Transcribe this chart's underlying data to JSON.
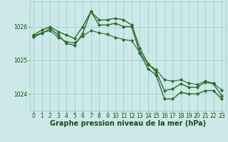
{
  "line1": {
    "x": [
      0,
      1,
      2,
      3,
      4,
      5,
      6,
      7,
      8,
      9,
      10,
      11,
      12,
      13,
      14,
      15,
      16,
      17,
      18,
      19,
      20,
      21,
      22,
      23
    ],
    "y": [
      1025.75,
      1025.9,
      1026.0,
      1025.85,
      1025.75,
      1025.65,
      1026.0,
      1026.45,
      1026.2,
      1026.2,
      1026.25,
      1026.2,
      1026.05,
      1025.35,
      1024.9,
      1024.65,
      1024.1,
      1024.15,
      1024.3,
      1024.2,
      1024.2,
      1024.35,
      1024.3,
      1023.95
    ],
    "color": "#2d6a2d",
    "marker": "D",
    "markersize": 2.2,
    "linewidth": 1.0
  },
  "line2": {
    "x": [
      0,
      1,
      2,
      3,
      4,
      5,
      6,
      7,
      8,
      9,
      10,
      11,
      12,
      13,
      14,
      15,
      16,
      17,
      18,
      19,
      20,
      21,
      22,
      23
    ],
    "y": [
      1025.7,
      1025.8,
      1025.95,
      1025.75,
      1025.5,
      1025.45,
      1025.8,
      1026.45,
      1026.05,
      1026.05,
      1026.1,
      1026.0,
      1026.0,
      1025.2,
      1024.75,
      1024.55,
      1023.85,
      1023.85,
      1024.05,
      1024.0,
      1024.0,
      1024.1,
      1024.1,
      1023.85
    ],
    "color": "#2d6a2d",
    "marker": "D",
    "markersize": 2.2,
    "linewidth": 1.0
  },
  "line3": {
    "x": [
      0,
      1,
      2,
      3,
      4,
      5,
      6,
      7,
      8,
      9,
      10,
      11,
      12,
      13,
      14,
      15,
      16,
      17,
      18,
      19,
      20,
      21,
      22,
      23
    ],
    "y": [
      1025.72,
      1025.82,
      1025.88,
      1025.68,
      1025.55,
      1025.52,
      1025.72,
      1025.88,
      1025.82,
      1025.77,
      1025.68,
      1025.62,
      1025.58,
      1025.22,
      1024.88,
      1024.72,
      1024.42,
      1024.38,
      1024.42,
      1024.32,
      1024.28,
      1024.38,
      1024.32,
      1024.12
    ],
    "color": "#2d6a2d",
    "marker": "D",
    "markersize": 2.2,
    "linewidth": 0.8
  },
  "background_color": "#cce8e8",
  "grid_color": "#99cccc",
  "axis_label": "Graphe pression niveau de la mer (hPa)",
  "axis_label_fontsize": 7.0,
  "axis_label_color": "#1a4a1a",
  "tick_color": "#1a4a1a",
  "tick_fontsize": 5.5,
  "ylim": [
    1023.5,
    1026.75
  ],
  "yticks": [
    1024,
    1025,
    1026
  ],
  "xlim": [
    -0.5,
    23.5
  ],
  "xticks": [
    0,
    1,
    2,
    3,
    4,
    5,
    6,
    7,
    8,
    9,
    10,
    11,
    12,
    13,
    14,
    15,
    16,
    17,
    18,
    19,
    20,
    21,
    22,
    23
  ]
}
